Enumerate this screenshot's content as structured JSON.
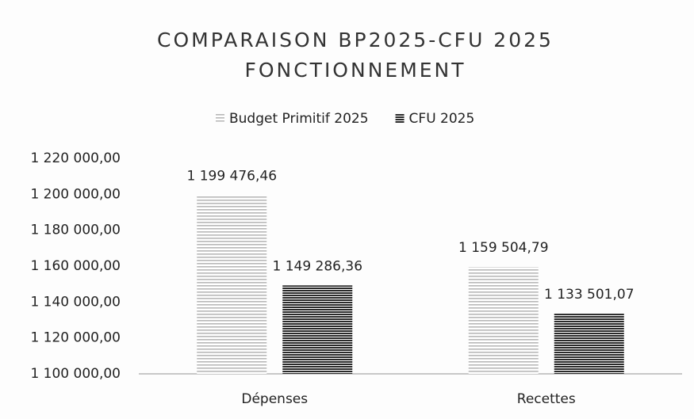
{
  "chart_data": {
    "type": "bar",
    "title": [
      "COMPARAISON BP2025-CFU 2025",
      "FONCTIONNEMENT"
    ],
    "categories": [
      "Dépenses",
      "Recettes"
    ],
    "series": [
      {
        "name": "Budget Primitif 2025",
        "color": "#b8b8b8",
        "values": [
          1199476.46,
          1159504.79
        ],
        "value_labels": [
          "1 199 476,46",
          "1 159 504,79"
        ]
      },
      {
        "name": "CFU 2025",
        "color": "#2a2a2a",
        "values": [
          1149286.36,
          1133501.07
        ],
        "value_labels": [
          "1 149 286,36",
          "1 133 501,07"
        ]
      }
    ],
    "ylim": [
      1100000,
      1220000
    ],
    "yticks": [
      {
        "value": 1100000,
        "label": "1 100 000,00"
      },
      {
        "value": 1120000,
        "label": "1 120 000,00"
      },
      {
        "value": 1140000,
        "label": "1 140 000,00"
      },
      {
        "value": 1160000,
        "label": "1 160 000,00"
      },
      {
        "value": 1180000,
        "label": "1 180 000,00"
      },
      {
        "value": 1200000,
        "label": "1 200 000,00"
      },
      {
        "value": 1220000,
        "label": "1 220 000,00"
      }
    ],
    "grid": false,
    "legend": "top"
  }
}
